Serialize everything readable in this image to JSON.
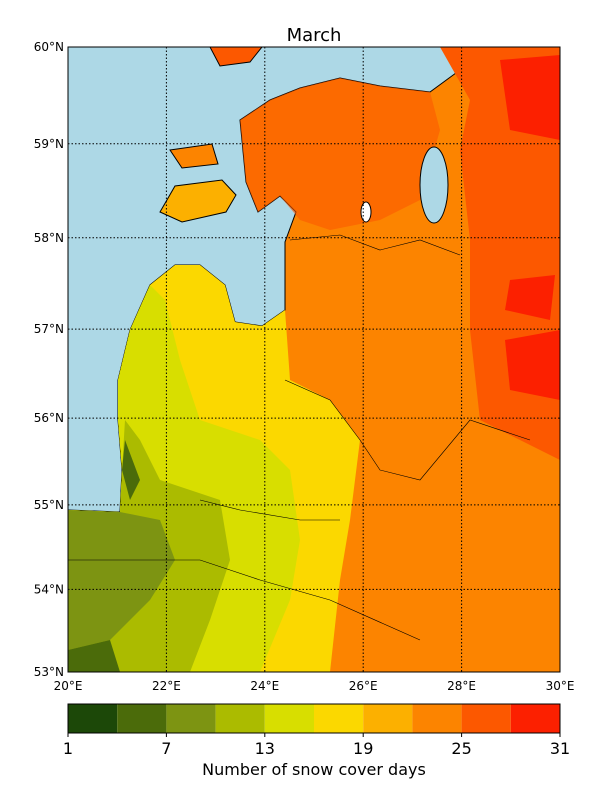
{
  "map": {
    "title": "March",
    "lonlim": [
      20,
      30
    ],
    "latlim": [
      53,
      60
    ],
    "lon_ticks": [
      {
        "value": 20,
        "label": "20°E"
      },
      {
        "value": 22,
        "label": "22°E"
      },
      {
        "value": 24,
        "label": "24°E"
      },
      {
        "value": 26,
        "label": "26°E"
      },
      {
        "value": 28,
        "label": "28°E"
      },
      {
        "value": 30,
        "label": "30°E"
      }
    ],
    "lat_ticks": [
      {
        "value": 53,
        "label": "53°N"
      },
      {
        "value": 54,
        "label": "54°N"
      },
      {
        "value": 55,
        "label": "55°N"
      },
      {
        "value": 56,
        "label": "56°N"
      },
      {
        "value": 57,
        "label": "57°N"
      },
      {
        "value": 58,
        "label": "58°N"
      },
      {
        "value": 59,
        "label": "59°N"
      },
      {
        "value": 60,
        "label": "60°N"
      }
    ],
    "grid": true
  },
  "colorbar": {
    "label": "Number of snow cover days",
    "lim": [
      1,
      31
    ],
    "ticks": [
      1,
      7,
      13,
      19,
      25,
      31
    ],
    "colors": [
      "#1c4808",
      "#4b6b0a",
      "#7d9412",
      "#abbb00",
      "#d8de00",
      "#fbd800",
      "#fcb000",
      "#fc8400",
      "#fc5800",
      "#fc2000"
    ]
  }
}
